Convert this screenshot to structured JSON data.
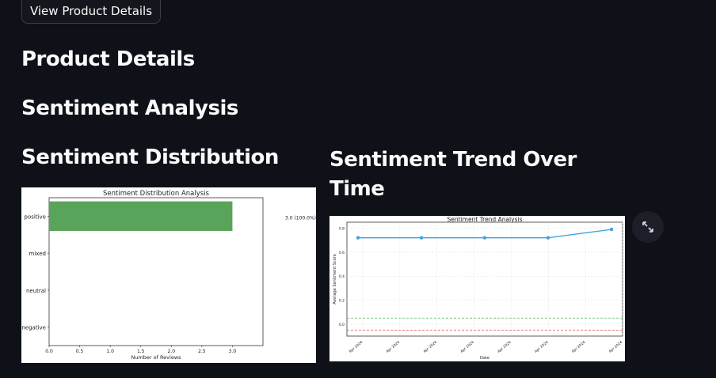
{
  "top_button": {
    "label": "View Product Details"
  },
  "headings": {
    "product_details": "Product Details",
    "sentiment_analysis": "Sentiment Analysis",
    "distribution": "Sentiment Distribution",
    "trend": "Sentiment Trend Over Time"
  },
  "expand_icon": "expand-arrows-icon",
  "colors": {
    "background": "#0e1117",
    "bar": "#59a35b",
    "line": "#3fa4e0",
    "green_ref": "#5cb85c",
    "red_ref": "#e06666"
  },
  "chart_data": [
    {
      "type": "bar",
      "orientation": "horizontal",
      "title": "Sentiment Distribution Analysis",
      "xlabel": "Number of Reviews",
      "ylabel": "",
      "categories": [
        "positive",
        "mixed",
        "neutral",
        "negative"
      ],
      "values": [
        3,
        0,
        0,
        0
      ],
      "data_labels": [
        "3.0 (100.0%)",
        "",
        "",
        ""
      ],
      "xlim": [
        0,
        3.5
      ],
      "xticks": [
        "0.0",
        "0.5",
        "1.0",
        "1.5",
        "2.0",
        "2.5",
        "3.0"
      ]
    },
    {
      "type": "line",
      "title": "Sentiment Trend Analysis",
      "xlabel": "Date",
      "ylabel": "Average Sentiment Score",
      "x": [
        "Apr 2024",
        "Apr 2024",
        "Apr 2024",
        "Apr 2024",
        "Apr 2024"
      ],
      "xticks": [
        "Apr 2024",
        "Apr 2024",
        "Apr 2024",
        "Apr 2024",
        "Apr 2024",
        "Apr 2024",
        "Apr 2024",
        "Apr 2024"
      ],
      "values": [
        0.72,
        0.72,
        0.72,
        0.72,
        0.79
      ],
      "ylim": [
        -0.1,
        0.85
      ],
      "yticks": [
        "0.0",
        "0.2",
        "0.4",
        "0.6",
        "0.8"
      ],
      "reference_lines": [
        0.05,
        -0.05
      ],
      "grid": true
    }
  ]
}
